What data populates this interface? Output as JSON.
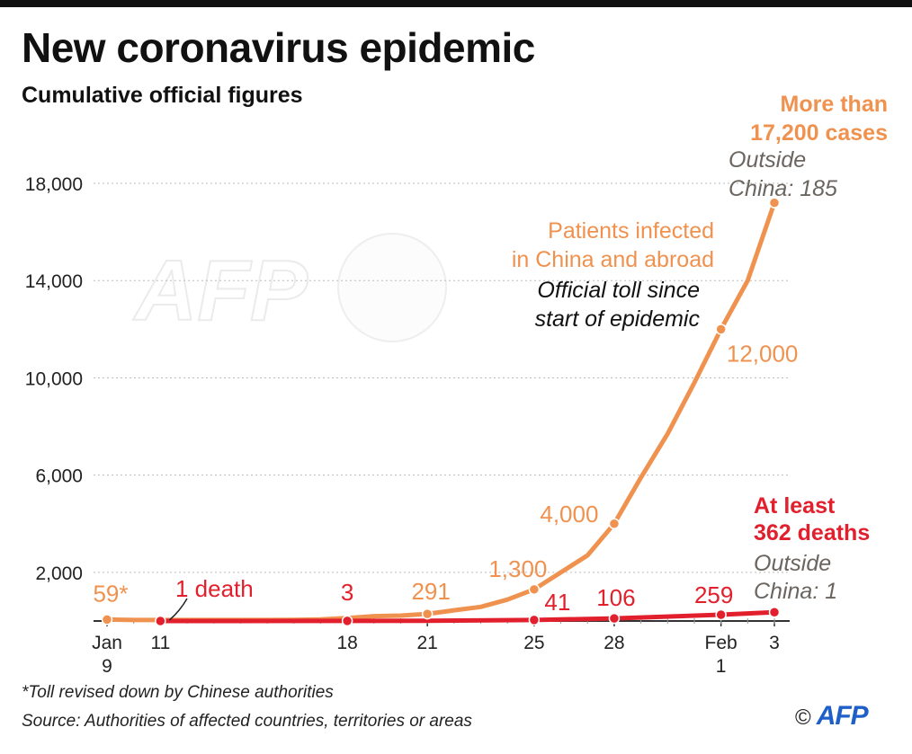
{
  "header": {
    "title": "New coronavirus epidemic",
    "subtitle": "Cumulative official figures"
  },
  "footer": {
    "footnote": "*Toll revised down by Chinese authorities",
    "source": "Source: Authorities of affected countries, territories or areas",
    "credit_symbol": "©",
    "credit_logo": "AFP"
  },
  "watermark": {
    "text": "AFP"
  },
  "colors": {
    "cases": "#f0924f",
    "deaths": "#e2202d",
    "grid": "#bbbbbb",
    "axis": "#333333"
  },
  "chart_data": {
    "type": "line",
    "title": "New coronavirus epidemic",
    "subtitle": "Cumulative official figures",
    "xlabel": "",
    "ylabel": "",
    "ylim": [
      0,
      19000
    ],
    "yticks": [
      "18,000",
      "14,000",
      "10,000",
      "6,000",
      "2,000"
    ],
    "ytick_values": [
      18000,
      14000,
      10000,
      6000,
      2000
    ],
    "grid": true,
    "xlim": [
      "2020-01-09",
      "2020-02-03"
    ],
    "xtick_labels": [
      {
        "date": "2020-01-09",
        "line1": "Jan",
        "line2": "9"
      },
      {
        "date": "2020-01-11",
        "line1": "11",
        "line2": ""
      },
      {
        "date": "2020-01-18",
        "line1": "18",
        "line2": ""
      },
      {
        "date": "2020-01-21",
        "line1": "21",
        "line2": ""
      },
      {
        "date": "2020-01-25",
        "line1": "25",
        "line2": ""
      },
      {
        "date": "2020-01-28",
        "line1": "28",
        "line2": ""
      },
      {
        "date": "2020-02-01",
        "line1": "Feb",
        "line2": "1"
      },
      {
        "date": "2020-02-03",
        "line1": "3",
        "line2": ""
      }
    ],
    "series": [
      {
        "key": "cases",
        "points": [
          {
            "x": "2020-01-09",
            "y": 59
          },
          {
            "x": "2020-01-10",
            "y": 41
          },
          {
            "x": "2020-01-11",
            "y": 41
          },
          {
            "x": "2020-01-12",
            "y": 41
          },
          {
            "x": "2020-01-13",
            "y": 41
          },
          {
            "x": "2020-01-14",
            "y": 41
          },
          {
            "x": "2020-01-15",
            "y": 41
          },
          {
            "x": "2020-01-16",
            "y": 45
          },
          {
            "x": "2020-01-17",
            "y": 62
          },
          {
            "x": "2020-01-18",
            "y": 121
          },
          {
            "x": "2020-01-19",
            "y": 200
          },
          {
            "x": "2020-01-20",
            "y": 220
          },
          {
            "x": "2020-01-21",
            "y": 291
          },
          {
            "x": "2020-01-22",
            "y": 440
          },
          {
            "x": "2020-01-23",
            "y": 580
          },
          {
            "x": "2020-01-24",
            "y": 880
          },
          {
            "x": "2020-01-25",
            "y": 1300
          },
          {
            "x": "2020-01-26",
            "y": 2000
          },
          {
            "x": "2020-01-27",
            "y": 2700
          },
          {
            "x": "2020-01-28",
            "y": 4000
          },
          {
            "x": "2020-01-29",
            "y": 5900
          },
          {
            "x": "2020-01-30",
            "y": 7700
          },
          {
            "x": "2020-01-31",
            "y": 9800
          },
          {
            "x": "2020-02-01",
            "y": 12000
          },
          {
            "x": "2020-02-02",
            "y": 14000
          },
          {
            "x": "2020-02-03",
            "y": 17200
          }
        ],
        "markers": [
          "2020-01-09",
          "2020-01-21",
          "2020-01-25",
          "2020-01-28",
          "2020-02-01",
          "2020-02-03"
        ]
      },
      {
        "key": "deaths",
        "points": [
          {
            "x": "2020-01-11",
            "y": 1
          },
          {
            "x": "2020-01-18",
            "y": 3
          },
          {
            "x": "2020-01-21",
            "y": 6
          },
          {
            "x": "2020-01-25",
            "y": 41
          },
          {
            "x": "2020-01-28",
            "y": 106
          },
          {
            "x": "2020-02-01",
            "y": 259
          },
          {
            "x": "2020-02-03",
            "y": 362
          }
        ],
        "markers": [
          "2020-01-11",
          "2020-01-18",
          "2020-01-25",
          "2020-01-28",
          "2020-02-01",
          "2020-02-03"
        ]
      }
    ],
    "data_labels": [
      {
        "series": "cases",
        "text": "59*",
        "x": "2020-01-09",
        "y": 59
      },
      {
        "series": "cases",
        "text": "291",
        "x": "2020-01-21",
        "y": 291
      },
      {
        "series": "cases",
        "text": "1,300",
        "x": "2020-01-25",
        "y": 1300
      },
      {
        "series": "cases",
        "text": "4,000",
        "x": "2020-01-28",
        "y": 4000
      },
      {
        "series": "cases",
        "text": "12,000",
        "x": "2020-02-01",
        "y": 12000
      },
      {
        "series": "deaths",
        "text": "1 death",
        "x": "2020-01-11",
        "y": 1
      },
      {
        "series": "deaths",
        "text": "3",
        "x": "2020-01-18",
        "y": 3
      },
      {
        "series": "deaths",
        "text": "41",
        "x": "2020-01-25",
        "y": 41
      },
      {
        "series": "deaths",
        "text": "106",
        "x": "2020-01-28",
        "y": 106
      },
      {
        "series": "deaths",
        "text": "259",
        "x": "2020-02-01",
        "y": 259
      }
    ],
    "annotations": {
      "cases_total": [
        "More than",
        "17,200 cases"
      ],
      "cases_outside": [
        "Outside",
        "China: 185"
      ],
      "cases_series_label": [
        "Patients infected",
        "in China and abroad"
      ],
      "cases_series_desc": [
        "Official toll since",
        "start of epidemic"
      ],
      "deaths_total": [
        "At least",
        "362 deaths"
      ],
      "deaths_outside": [
        "Outside",
        "China: 1"
      ]
    }
  }
}
